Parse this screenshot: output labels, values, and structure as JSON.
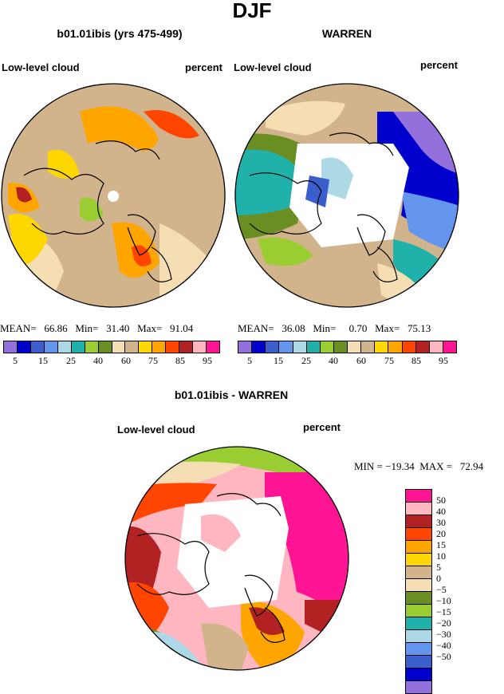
{
  "season": "DJF",
  "panel1": {
    "title": "b01.01ibis (yrs 475-499)",
    "field": "Low-level cloud",
    "units": "percent",
    "stats": "MEAN=   66.86   Min=   31.40   Max=   91.04"
  },
  "panel2": {
    "title": "WARREN",
    "field": "Low-level cloud",
    "units": "percent",
    "stats": "MEAN=   36.08   Min=     0.70   Max=   75.13"
  },
  "panel3": {
    "title": "b01.01ibis - WARREN",
    "field": "Low-level cloud",
    "units": "percent",
    "stats": "MIN = −19.34  MAX =   72.94"
  },
  "colorbar_top": {
    "colors": [
      "#9370db",
      "#0000cd",
      "#3a5fcd",
      "#6495ed",
      "#add8e6",
      "#20b2aa",
      "#9acd32",
      "#6b8e23",
      "#f5deb3",
      "#d2b48c",
      "#ffd700",
      "#ffa500",
      "#ff4500",
      "#b22222",
      "#ffb6c1",
      "#ff1493"
    ],
    "ticks": [
      "5",
      "15",
      "25",
      "40",
      "60",
      "75",
      "85",
      "95"
    ]
  },
  "colorbar_diff": {
    "colors": [
      "#ff1493",
      "#ffb6c1",
      "#b22222",
      "#ff4500",
      "#ffa500",
      "#ffd700",
      "#d2b48c",
      "#f5deb3",
      "#6b8e23",
      "#9acd32",
      "#20b2aa",
      "#add8e6",
      "#6495ed",
      "#3a5fcd",
      "#0000cd",
      "#9370db"
    ],
    "labels": [
      "50",
      "40",
      "30",
      "20",
      "15",
      "10",
      "5",
      "0",
      "−5",
      "−10",
      "−15",
      "−20",
      "−30",
      "−40",
      "−50"
    ]
  }
}
